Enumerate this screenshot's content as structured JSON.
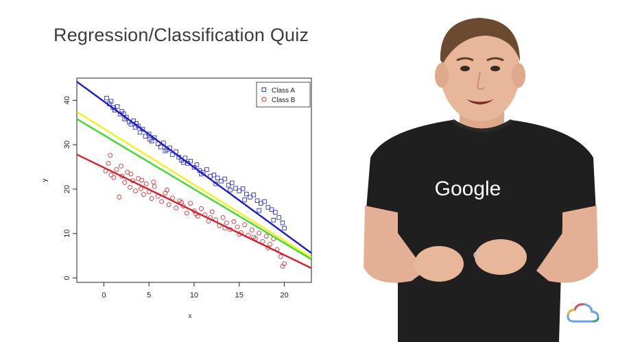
{
  "slide": {
    "title": "Regression/Classification Quiz"
  },
  "presenter": {
    "shirt_text": "Google"
  },
  "colors": {
    "class_a": "#2b2bd6",
    "class_b": "#e0303a",
    "line_blue": "#1a1ad0",
    "line_red": "#d81e2a",
    "line_yellow": "#f2f21a",
    "line_green": "#3cdc2a",
    "shirt": "#1f1f1f",
    "skin": "#e8b79a",
    "hair": "#6a4a30",
    "cloud_logo": [
      "#4285f4",
      "#ea4335",
      "#fbbc05",
      "#34a853"
    ]
  },
  "chart_data": {
    "type": "scatter",
    "xlabel": "x",
    "ylabel": "y",
    "xlim": [
      -3,
      23
    ],
    "ylim": [
      -1,
      45
    ],
    "xticks": [
      0,
      5,
      10,
      15,
      20
    ],
    "yticks": [
      0,
      10,
      20,
      30,
      40
    ],
    "legend_placement": "top-right",
    "grid": false,
    "series": [
      {
        "name": "Class A",
        "marker": "square",
        "x": [
          0.3,
          0.6,
          1.0,
          1.2,
          1.5,
          1.8,
          2.0,
          2.3,
          2.5,
          2.8,
          3.0,
          3.3,
          3.5,
          3.8,
          4.0,
          4.3,
          4.6,
          5.0,
          5.3,
          5.6,
          6.0,
          6.3,
          6.6,
          7.0,
          7.3,
          7.6,
          8.0,
          8.3,
          8.6,
          9.0,
          9.3,
          9.6,
          10.0,
          10.3,
          10.6,
          11.0,
          11.4,
          11.8,
          12.2,
          12.6,
          13.0,
          13.4,
          13.8,
          14.2,
          14.6,
          15.0,
          15.4,
          15.8,
          16.2,
          16.6,
          17.0,
          17.4,
          17.8,
          18.2,
          18.6,
          19.0,
          19.4,
          19.8,
          20.0,
          0.8,
          2.2,
          3.6,
          5.1,
          6.8,
          8.8,
          10.8,
          12.4,
          14.0,
          15.6,
          17.2,
          18.8
        ],
        "y": [
          40.5,
          39.2,
          38.4,
          37.8,
          38.6,
          36.9,
          37.5,
          35.8,
          36.2,
          35.1,
          34.6,
          35.4,
          33.9,
          34.2,
          32.8,
          33.5,
          31.9,
          32.4,
          30.8,
          31.6,
          30.2,
          29.5,
          30.4,
          28.9,
          29.3,
          27.8,
          28.4,
          27.2,
          26.5,
          27.0,
          25.8,
          26.3,
          24.9,
          25.5,
          24.2,
          23.8,
          24.4,
          22.9,
          23.2,
          22.5,
          21.8,
          22.3,
          20.9,
          21.4,
          20.2,
          19.6,
          20.1,
          18.9,
          18.2,
          18.7,
          17.4,
          16.8,
          17.2,
          15.9,
          15.4,
          14.8,
          13.6,
          12.4,
          11.2,
          39.8,
          37.0,
          34.8,
          31.2,
          28.6,
          26.0,
          23.4,
          21.2,
          19.8,
          17.6,
          15.2,
          13.0
        ]
      },
      {
        "name": "Class B",
        "marker": "circle",
        "x": [
          0.2,
          0.5,
          0.8,
          1.1,
          1.4,
          1.7,
          2.0,
          2.3,
          2.6,
          2.9,
          3.2,
          3.5,
          3.8,
          4.1,
          4.4,
          4.7,
          5.0,
          5.3,
          5.6,
          6.0,
          6.4,
          6.8,
          7.2,
          7.6,
          8.0,
          8.4,
          8.8,
          9.2,
          9.6,
          10.0,
          10.4,
          10.8,
          11.2,
          11.6,
          12.0,
          12.4,
          12.8,
          13.2,
          13.6,
          14.0,
          14.4,
          14.8,
          15.2,
          15.6,
          16.0,
          16.4,
          16.8,
          17.2,
          17.6,
          18.0,
          18.4,
          18.8,
          19.2,
          19.6,
          20.0,
          0.7,
          1.9,
          3.0,
          4.2,
          5.5,
          7.0,
          8.6,
          10.2,
          11.8,
          13.4,
          15.0,
          16.6,
          18.2,
          19.8
        ],
        "y": [
          24.1,
          25.8,
          23.2,
          22.6,
          24.4,
          18.2,
          22.9,
          21.5,
          23.8,
          20.4,
          21.9,
          19.6,
          22.4,
          20.1,
          18.8,
          21.2,
          19.4,
          17.9,
          20.6,
          18.4,
          17.2,
          19.1,
          16.5,
          18.0,
          15.8,
          17.4,
          16.2,
          14.6,
          16.8,
          15.1,
          13.9,
          15.6,
          14.2,
          12.8,
          14.9,
          13.1,
          11.8,
          13.6,
          12.4,
          10.9,
          12.7,
          11.5,
          10.2,
          12.0,
          9.6,
          10.8,
          8.9,
          10.1,
          8.2,
          9.4,
          7.6,
          8.8,
          6.4,
          4.8,
          3.2,
          27.6,
          25.2,
          23.4,
          22.0,
          21.6,
          19.8,
          17.0,
          14.4,
          13.6,
          11.2,
          9.8,
          9.2,
          6.8,
          2.6
        ]
      }
    ],
    "lines": [
      {
        "color": "blue",
        "x": [
          -3,
          23
        ],
        "y": [
          44.2,
          5.6
        ]
      },
      {
        "color": "yellow",
        "x": [
          -3,
          23
        ],
        "y": [
          37.4,
          4.6
        ]
      },
      {
        "color": "green",
        "x": [
          -3,
          23
        ],
        "y": [
          35.8,
          4.2
        ]
      },
      {
        "color": "red",
        "x": [
          -3,
          23
        ],
        "y": [
          27.8,
          2.2
        ]
      }
    ]
  }
}
